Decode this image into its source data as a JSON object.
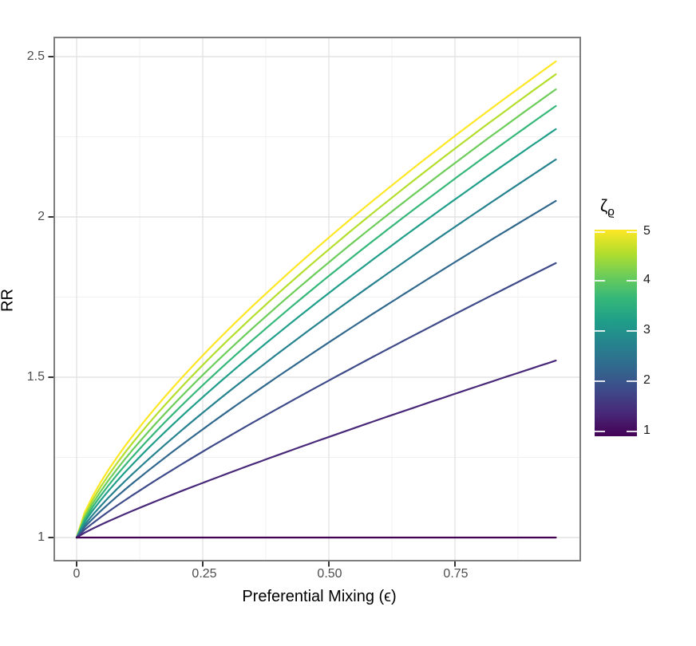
{
  "figure": {
    "x_axis_title": "Preferential Mixing (ϵ)",
    "y_axis_title": "RR"
  },
  "axes": {
    "x": {
      "tick_labels": [
        "0",
        "0.25",
        "0.50",
        "0.75"
      ],
      "tick_values": [
        0,
        0.25,
        0.5,
        0.75
      ],
      "minor_values": [
        0.125,
        0.375,
        0.625,
        0.875
      ]
    },
    "y": {
      "tick_labels": [
        "2.5",
        "2",
        "1.5",
        "1"
      ],
      "tick_values": [
        2.5,
        2,
        1.5,
        1
      ],
      "minor_values": [
        1.25,
        1.75,
        2.25
      ]
    }
  },
  "legend": {
    "title_main": "ζ",
    "title_sub": "ϱ",
    "tick_labels": [
      "5",
      "4",
      "3",
      "2",
      "1"
    ],
    "tick_values": [
      5,
      4,
      3,
      2,
      1
    ],
    "limits": [
      0.89,
      5
    ],
    "gradient_colors": [
      "#FDE725",
      "#B4DE2C",
      "#6DCD59",
      "#35B779",
      "#1F9E89",
      "#26828E",
      "#31688E",
      "#3E4A89",
      "#482878",
      "#440154"
    ]
  },
  "chart_data": {
    "type": "line",
    "title": "",
    "xlabel": "Preferential Mixing (ϵ)",
    "ylabel": "RR",
    "xlim": [
      -0.0475,
      0.9975
    ],
    "ylim": [
      0.926,
      2.554
    ],
    "x_data_range": [
      0,
      0.95
    ],
    "grid": "on",
    "legend_position": "right",
    "anchor_x": [
      0,
      0.125,
      0.25,
      0.5,
      0.75,
      0.95
    ],
    "series": [
      {
        "zeta": 5.0,
        "color": "#FDE725",
        "A": 1.485,
        "p": 0.72,
        "anchors": [
          1,
          1.345,
          1.568,
          1.935,
          2.253,
          2.485
        ]
      },
      {
        "zeta": 4.56,
        "color": "#B4DE2C",
        "A": 1.445,
        "p": 0.74,
        "anchors": [
          1,
          1.322,
          1.538,
          1.899,
          2.213,
          2.445
        ]
      },
      {
        "zeta": 4.11,
        "color": "#6DCD59",
        "A": 1.398,
        "p": 0.76,
        "anchors": [
          1,
          1.299,
          1.507,
          1.858,
          2.168,
          2.398
        ]
      },
      {
        "zeta": 3.67,
        "color": "#35B779",
        "A": 1.346,
        "p": 0.78,
        "anchors": [
          1,
          1.277,
          1.475,
          1.816,
          2.119,
          2.346
        ]
      },
      {
        "zeta": 3.22,
        "color": "#1F9E89",
        "A": 1.274,
        "p": 0.8,
        "anchors": [
          1,
          1.251,
          1.438,
          1.762,
          2.054,
          2.274
        ]
      },
      {
        "zeta": 2.78,
        "color": "#26828E",
        "A": 1.179,
        "p": 0.83,
        "anchors": [
          1,
          1.219,
          1.389,
          1.692,
          1.969,
          2.179
        ]
      },
      {
        "zeta": 2.33,
        "color": "#31688E",
        "A": 1.05,
        "p": 0.85,
        "anchors": [
          1,
          1.185,
          1.338,
          1.608,
          1.853,
          2.05
        ]
      },
      {
        "zeta": 1.89,
        "color": "#3E4A89",
        "A": 0.856,
        "p": 0.87,
        "anchors": [
          1,
          1.147,
          1.268,
          1.49,
          1.697,
          1.856
        ]
      },
      {
        "zeta": 1.44,
        "color": "#482878",
        "A": 0.552,
        "p": 0.88,
        "anchors": [
          1,
          1.093,
          1.171,
          1.314,
          1.448,
          1.552
        ]
      },
      {
        "zeta": 1.0,
        "color": "#440154",
        "A": 0.0,
        "p": 1.0,
        "anchors": [
          1,
          1,
          1,
          1,
          1,
          1
        ]
      }
    ]
  }
}
